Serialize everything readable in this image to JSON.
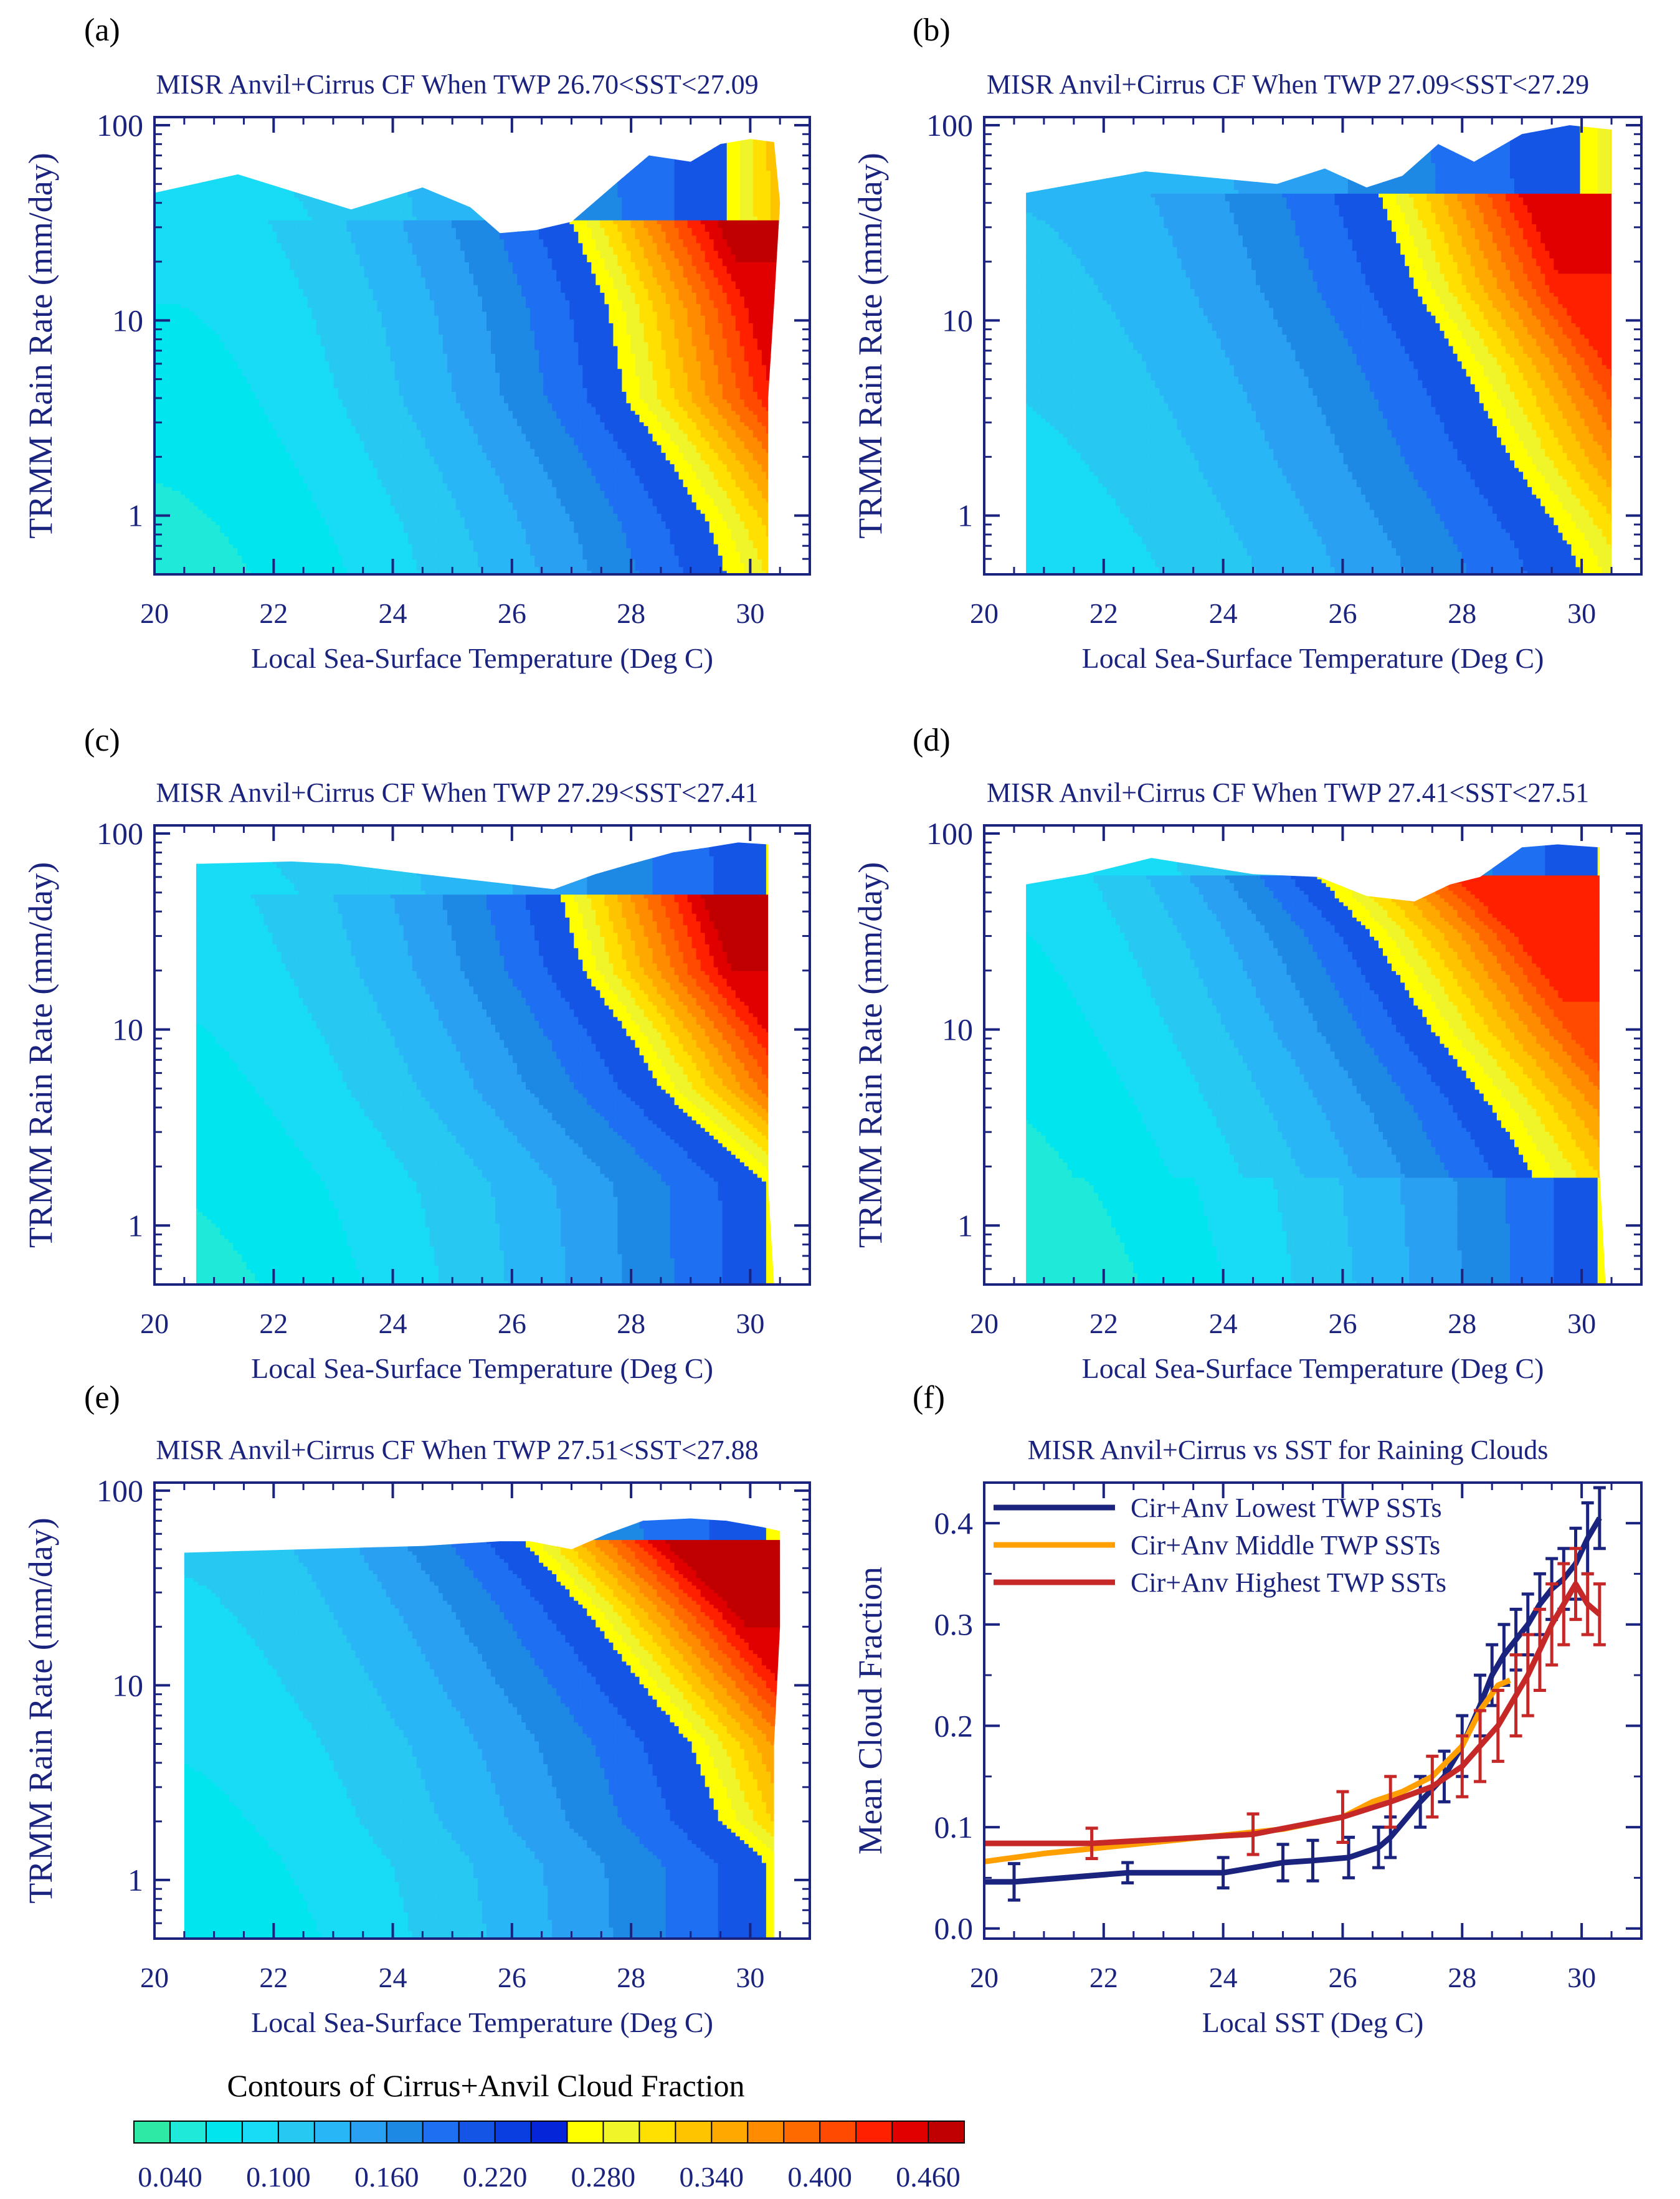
{
  "figure": {
    "colorbar_title": "Contours of Cirrus+Anvil Cloud Fraction",
    "colorbar_levels": [
      0.02,
      0.04,
      0.06,
      0.08,
      0.1,
      0.12,
      0.14,
      0.16,
      0.18,
      0.2,
      0.22,
      0.24,
      0.26,
      0.28,
      0.3,
      0.32,
      0.34,
      0.36,
      0.38,
      0.4,
      0.42,
      0.44,
      0.46,
      0.48
    ],
    "colorbar_labels": [
      "0.040",
      "0.100",
      "0.160",
      "0.220",
      "0.280",
      "0.340",
      "0.400",
      "0.460"
    ],
    "colorbar_colors": [
      "#2ee8a6",
      "#1fead9",
      "#00e5ee",
      "#18dcf5",
      "#27c8f2",
      "#29b6f6",
      "#2aa0f3",
      "#1e88e5",
      "#1e6ff2",
      "#1455e6",
      "#0a3ee0",
      "#0526d8",
      "#ffff00",
      "#f0f52a",
      "#ffe000",
      "#ffc400",
      "#ffa800",
      "#ff8c00",
      "#ff6a00",
      "#ff4a00",
      "#ff2000",
      "#e00000",
      "#c00000"
    ]
  },
  "chart_data": [
    {
      "panel": "(a)",
      "type": "contour",
      "title": "MISR Anvil+Cirrus CF When TWP 26.70<SST<27.09",
      "xlabel": "Local Sea-Surface Temperature (Deg C)",
      "ylabel": "TRMM Rain Rate (mm/day)",
      "xlim": [
        20,
        31
      ],
      "ylim": [
        0.5,
        110
      ],
      "yscale": "log",
      "xticks": [
        "20",
        "22",
        "24",
        "26",
        "28",
        "30"
      ],
      "yticks": [
        "1",
        "10",
        "100"
      ],
      "top_boundary": [
        [
          20.0,
          45
        ],
        [
          21.4,
          56
        ],
        [
          23.3,
          37
        ],
        [
          24.5,
          48
        ],
        [
          25.3,
          38
        ],
        [
          25.8,
          28
        ],
        [
          26.4,
          29
        ],
        [
          27.0,
          32
        ],
        [
          27.8,
          52
        ],
        [
          28.3,
          70
        ],
        [
          29.0,
          65
        ],
        [
          29.5,
          80
        ],
        [
          30.0,
          85
        ],
        [
          30.4,
          82
        ]
      ],
      "right_boundary": [
        [
          30.4,
          82
        ],
        [
          30.5,
          40
        ],
        [
          30.4,
          12
        ],
        [
          30.3,
          4
        ],
        [
          30.3,
          0.5
        ]
      ],
      "transition_sst": [
        [
          27.0,
          32
        ],
        [
          27.6,
          12
        ],
        [
          27.9,
          4
        ],
        [
          28.6,
          2
        ],
        [
          29.3,
          0.9
        ],
        [
          29.6,
          0.5
        ]
      ],
      "cf_at_low_sst": 0.05,
      "cf_at_transition": 0.24,
      "cf_peak": 0.48
    },
    {
      "panel": "(b)",
      "type": "contour",
      "title": "MISR Anvil+Cirrus CF When TWP 27.09<SST<27.29",
      "xlabel": "Local Sea-Surface Temperature (Deg C)",
      "ylabel": "TRMM Rain Rate (mm/day)",
      "xlim": [
        20,
        31
      ],
      "ylim": [
        0.5,
        110
      ],
      "yscale": "log",
      "xticks": [
        "20",
        "22",
        "24",
        "26",
        "28",
        "30"
      ],
      "yticks": [
        "1",
        "10",
        "100"
      ],
      "top_boundary": [
        [
          20.7,
          45
        ],
        [
          22.7,
          58
        ],
        [
          24.9,
          50
        ],
        [
          25.7,
          60
        ],
        [
          26.4,
          48
        ],
        [
          27.0,
          55
        ],
        [
          27.6,
          80
        ],
        [
          28.2,
          65
        ],
        [
          29.0,
          90
        ],
        [
          29.8,
          100
        ],
        [
          30.5,
          95
        ]
      ],
      "right_boundary": [
        [
          30.5,
          95
        ],
        [
          30.5,
          30
        ],
        [
          30.5,
          5
        ],
        [
          30.5,
          0.5
        ]
      ],
      "transition_sst": [
        [
          26.6,
          45
        ],
        [
          27.2,
          15
        ],
        [
          28.0,
          6
        ],
        [
          28.8,
          2
        ],
        [
          29.8,
          0.7
        ],
        [
          30.0,
          0.5
        ]
      ],
      "cf_at_low_sst": 0.08,
      "cf_at_transition": 0.24,
      "cf_peak": 0.46
    },
    {
      "panel": "(c)",
      "type": "contour",
      "title": "MISR Anvil+Cirrus CF When TWP 27.29<SST<27.41",
      "xlabel": "Local Sea-Surface Temperature (Deg C)",
      "ylabel": "TRMM Rain Rate (mm/day)",
      "xlim": [
        20,
        31
      ],
      "ylim": [
        0.5,
        110
      ],
      "yscale": "log",
      "xticks": [
        "20",
        "22",
        "24",
        "26",
        "28",
        "30"
      ],
      "yticks": [
        "1",
        "10",
        "100"
      ],
      "top_boundary": [
        [
          20.7,
          70
        ],
        [
          22.3,
          72
        ],
        [
          23.1,
          70
        ],
        [
          24.5,
          62
        ],
        [
          26.7,
          52
        ],
        [
          27.4,
          62
        ],
        [
          28.0,
          70
        ],
        [
          28.7,
          80
        ],
        [
          29.3,
          85
        ],
        [
          29.8,
          90
        ],
        [
          30.3,
          88
        ]
      ],
      "right_boundary": [
        [
          30.3,
          88
        ],
        [
          30.3,
          15
        ],
        [
          30.3,
          1.6
        ],
        [
          30.4,
          0.5
        ]
      ],
      "transition_sst": [
        [
          26.8,
          50
        ],
        [
          27.2,
          20
        ],
        [
          28.0,
          9
        ],
        [
          28.5,
          5
        ],
        [
          29.3,
          3
        ],
        [
          30.3,
          1.6
        ]
      ],
      "cf_at_low_sst": 0.05,
      "cf_at_transition": 0.24,
      "cf_peak": 0.48
    },
    {
      "panel": "(d)",
      "type": "contour",
      "title": "MISR Anvil+Cirrus CF When TWP 27.41<SST<27.51",
      "xlabel": "Local Sea-Surface Temperature (Deg C)",
      "ylabel": "TRMM Rain Rate (mm/day)",
      "xlim": [
        20,
        31
      ],
      "ylim": [
        0.5,
        110
      ],
      "yscale": "log",
      "xticks": [
        "20",
        "22",
        "24",
        "26",
        "28",
        "30"
      ],
      "yticks": [
        "1",
        "10",
        "100"
      ],
      "top_boundary": [
        [
          20.7,
          55
        ],
        [
          21.7,
          62
        ],
        [
          22.8,
          75
        ],
        [
          24.5,
          62
        ],
        [
          25.6,
          60
        ],
        [
          26.4,
          48
        ],
        [
          27.2,
          45
        ],
        [
          27.8,
          55
        ],
        [
          28.3,
          60
        ],
        [
          29.0,
          85
        ],
        [
          29.6,
          88
        ],
        [
          30.3,
          85
        ]
      ],
      "right_boundary": [
        [
          30.3,
          85
        ],
        [
          30.3,
          10
        ],
        [
          30.3,
          1.9
        ],
        [
          30.4,
          0.5
        ]
      ],
      "transition_sst": [
        [
          25.6,
          60
        ],
        [
          26.5,
          30
        ],
        [
          27.5,
          10
        ],
        [
          28.5,
          4
        ],
        [
          29.2,
          1.8
        ],
        [
          30.3,
          1.9
        ]
      ],
      "cf_at_low_sst": 0.04,
      "cf_at_transition": 0.24,
      "cf_peak": 0.44
    },
    {
      "panel": "(e)",
      "type": "contour",
      "title": "MISR Anvil+Cirrus CF When TWP 27.51<SST<27.88",
      "xlabel": "Local Sea-Surface Temperature (Deg C)",
      "ylabel": "TRMM Rain Rate (mm/day)",
      "xlim": [
        20,
        31
      ],
      "ylim": [
        0.5,
        110
      ],
      "yscale": "log",
      "xticks": [
        "20",
        "22",
        "24",
        "26",
        "28",
        "30"
      ],
      "yticks": [
        "1",
        "10",
        "100"
      ],
      "top_boundary": [
        [
          20.5,
          48
        ],
        [
          22.5,
          50
        ],
        [
          24.5,
          52
        ],
        [
          25.8,
          55
        ],
        [
          26.3,
          55
        ],
        [
          27.0,
          50
        ],
        [
          27.6,
          60
        ],
        [
          28.2,
          70
        ],
        [
          29.0,
          72
        ],
        [
          29.6,
          70
        ],
        [
          30.2,
          65
        ],
        [
          30.5,
          62
        ]
      ],
      "right_boundary": [
        [
          30.5,
          62
        ],
        [
          30.5,
          20
        ],
        [
          30.4,
          5
        ],
        [
          30.4,
          0.5
        ]
      ],
      "transition_sst": [
        [
          26.2,
          55
        ],
        [
          27.2,
          25
        ],
        [
          28.2,
          10
        ],
        [
          29.0,
          5
        ],
        [
          29.5,
          2
        ],
        [
          30.3,
          1.2
        ]
      ],
      "cf_at_low_sst": 0.06,
      "cf_at_transition": 0.24,
      "cf_peak": 0.48
    },
    {
      "panel": "(f)",
      "type": "line",
      "title": "MISR Anvil+Cirrus vs SST for Raining Clouds",
      "xlabel": "Local SST (Deg C)",
      "ylabel": "Mean Cloud Fraction",
      "xlim": [
        20,
        31
      ],
      "ylim": [
        -0.01,
        0.44
      ],
      "xticks": [
        "20",
        "22",
        "24",
        "26",
        "28",
        "30"
      ],
      "yticks": [
        "0.0",
        "0.1",
        "0.2",
        "0.3",
        "0.4"
      ],
      "series": [
        {
          "name": "Cir+Anv Lowest TWP SSTs",
          "color": "#1a237e",
          "x": [
            20.0,
            20.5,
            22.4,
            24.0,
            25.0,
            25.5,
            26.1,
            26.6,
            26.8,
            27.3,
            27.7,
            28.0,
            28.3,
            28.5,
            28.7,
            28.9,
            29.1,
            29.3,
            29.5,
            29.7,
            29.9,
            30.1,
            30.3
          ],
          "y": [
            0.046,
            0.046,
            0.055,
            0.055,
            0.065,
            0.067,
            0.07,
            0.08,
            0.09,
            0.125,
            0.15,
            0.18,
            0.22,
            0.25,
            0.27,
            0.285,
            0.3,
            0.32,
            0.335,
            0.345,
            0.36,
            0.385,
            0.405
          ],
          "err": [
            0,
            0.018,
            0.01,
            0.015,
            0.018,
            0.02,
            0.02,
            0.02,
            0.02,
            0.025,
            0.025,
            0.03,
            0.03,
            0.03,
            0.03,
            0.03,
            0.03,
            0.03,
            0.03,
            0.03,
            0.035,
            0.035,
            0.03
          ]
        },
        {
          "name": "Cir+Anv Middle TWP SSTs",
          "color": "#ffa000",
          "x": [
            20.0,
            21.0,
            22.0,
            23.0,
            24.0,
            25.0,
            26.0,
            26.5,
            27.0,
            27.5,
            28.0,
            28.3,
            28.6,
            28.8
          ],
          "y": [
            0.066,
            0.074,
            0.08,
            0.086,
            0.092,
            0.098,
            0.11,
            0.125,
            0.135,
            0.15,
            0.18,
            0.215,
            0.24,
            0.245
          ],
          "err": [
            0,
            0,
            0,
            0,
            0,
            0,
            0,
            0,
            0,
            0,
            0,
            0,
            0,
            0
          ]
        },
        {
          "name": "Cir+Anv Highest TWP SSTs",
          "color": "#c62828",
          "x": [
            20.0,
            21.8,
            24.5,
            26.0,
            26.8,
            27.5,
            28.0,
            28.3,
            28.6,
            28.9,
            29.1,
            29.3,
            29.5,
            29.7,
            29.9,
            30.1,
            30.3
          ],
          "y": [
            0.084,
            0.084,
            0.093,
            0.11,
            0.125,
            0.14,
            0.16,
            0.18,
            0.2,
            0.23,
            0.25,
            0.275,
            0.3,
            0.32,
            0.34,
            0.32,
            0.31
          ],
          "err": [
            0,
            0.015,
            0.02,
            0.025,
            0.025,
            0.03,
            0.03,
            0.035,
            0.035,
            0.04,
            0.04,
            0.04,
            0.04,
            0.04,
            0.035,
            0.03,
            0.03
          ]
        }
      ]
    }
  ]
}
